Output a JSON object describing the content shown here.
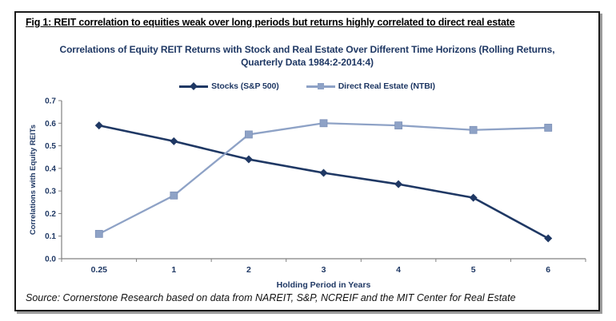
{
  "figure": {
    "caption": "Fig 1: REIT correlation to equities weak over long periods but returns highly correlated to direct real estate",
    "source": "Source: Cornerstone Research based on data from NAREIT, S&P, NCREIF and the MIT Center for Real Estate"
  },
  "chart_data": {
    "type": "line",
    "title_lines": {
      "0": "Correlations of Equity REIT Returns with Stock and Real Estate Over Different Time Horizons (Rolling Returns,",
      "1": "Quarterly Data 1984:2-2014:4)"
    },
    "title": "Correlations of Equity REIT Returns with Stock and Real Estate Over Different Time Horizons (Rolling Returns, Quarterly Data 1984:2-2014:4)",
    "categories": [
      "0.25",
      "1",
      "2",
      "3",
      "4",
      "5",
      "6"
    ],
    "series": [
      {
        "name": "Stocks (S&P 500)",
        "marker": "diamond",
        "color": "#1f3864",
        "values": [
          0.59,
          0.52,
          0.44,
          0.38,
          0.33,
          0.27,
          0.09
        ]
      },
      {
        "name": "Direct Real Estate (NTBI)",
        "marker": "square",
        "color": "#8ea2c6",
        "values": [
          0.11,
          0.28,
          0.55,
          0.6,
          0.59,
          0.57,
          0.58
        ]
      }
    ],
    "xlabel": "Holding Period in Years",
    "ylabel": "Correlations with Equity REITs",
    "ylim": [
      0.0,
      0.7
    ],
    "ytick_step": 0.1,
    "grid": false,
    "legend_position": "top"
  },
  "colors": {
    "navy_text": "#1f3864",
    "light_series": "#8ea2c6",
    "axis_line": "#808080",
    "frame_border": "#1b1b1b"
  }
}
